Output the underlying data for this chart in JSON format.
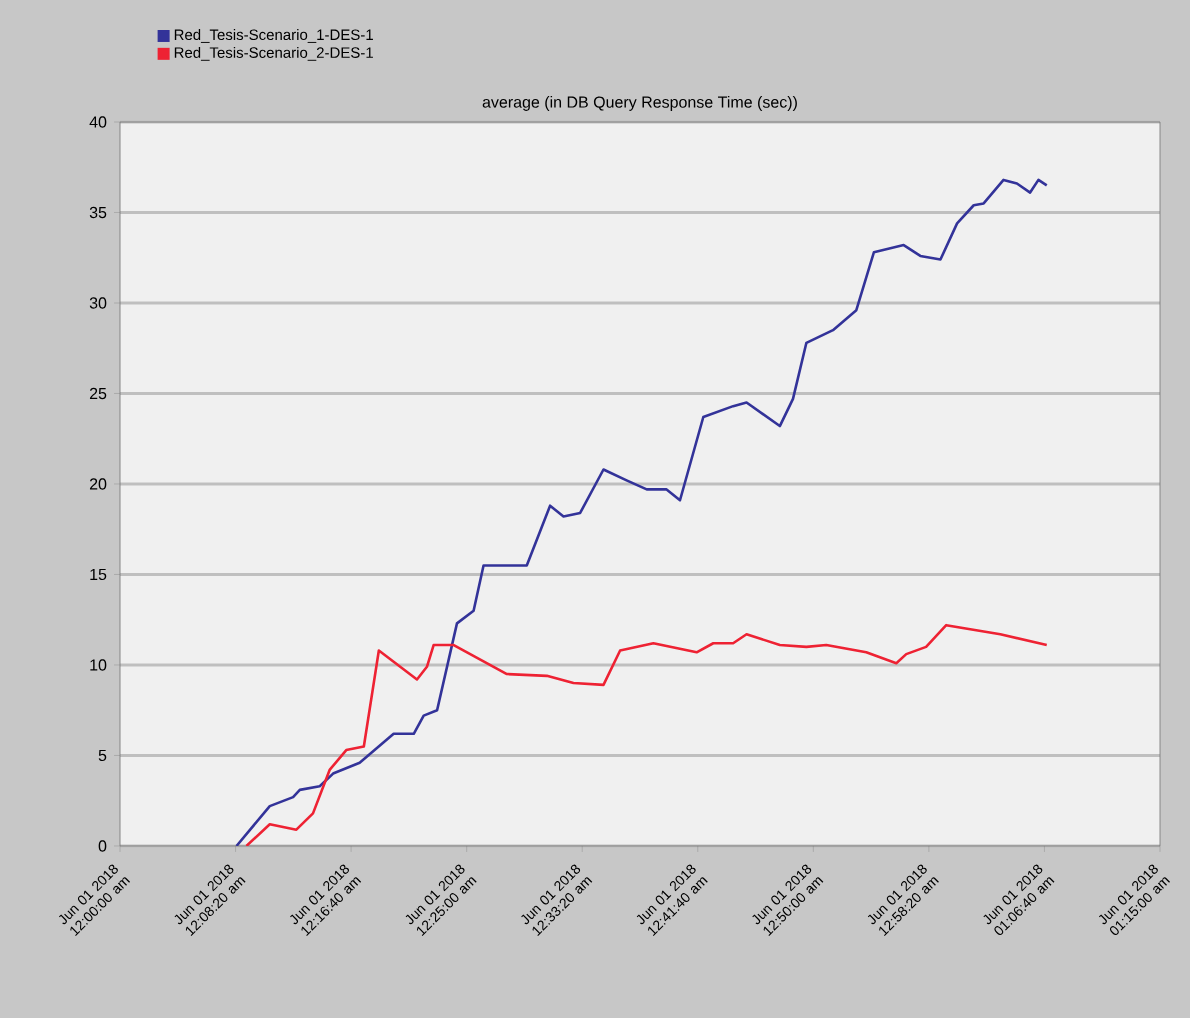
{
  "chart_data": {
    "type": "line",
    "title": "average (in DB Query Response Time (sec))",
    "x": [
      "2018-06-01T00:08:24",
      "2018-06-01T00:10:48",
      "2018-06-01T00:12:29",
      "2018-06-01T00:12:58",
      "2018-06-01T00:14:24",
      "2018-06-01T00:15:22",
      "2018-06-01T00:17:17",
      "2018-06-01T00:19:44",
      "2018-06-01T00:21:11",
      "2018-06-01T00:21:54",
      "2018-06-01T00:22:52",
      "2018-06-01T00:24:18",
      "2018-06-01T00:25:30",
      "2018-06-01T00:26:13",
      "2018-06-01T00:29:20",
      "2018-06-01T00:31:01",
      "2018-06-01T00:31:59",
      "2018-06-01T00:33:11",
      "2018-06-01T00:34:52",
      "2018-06-01T00:36:32",
      "2018-06-01T00:37:59",
      "2018-06-01T00:39:25",
      "2018-06-01T00:40:23",
      "2018-06-01T00:42:04",
      "2018-06-01T00:44:13",
      "2018-06-01T00:45:11",
      "2018-06-01T00:47:35",
      "2018-06-01T00:48:32",
      "2018-06-01T00:49:30",
      "2018-06-01T00:51:25",
      "2018-06-01T00:53:06",
      "2018-06-01T00:54:22",
      "2018-06-01T00:56:31",
      "2018-06-01T00:57:43",
      "2018-06-01T00:59:10",
      "2018-06-01T01:00:22",
      "2018-06-01T01:01:34",
      "2018-06-01T01:02:17",
      "2018-06-01T01:03:43",
      "2018-06-01T01:04:41",
      "2018-06-01T01:05:38",
      "2018-06-01T01:06:14",
      "2018-06-01T01:06:50"
    ],
    "series": [
      {
        "name": "Red_Tesis-Scenario_1-DES-1",
        "color": "#333399",
        "values": [
          0,
          2.2,
          2.7,
          3.1,
          3.3,
          4.0,
          4.6,
          6.2,
          6.2,
          7.2,
          7.5,
          12.3,
          13.0,
          15.5,
          15.5,
          18.8,
          18.2,
          18.4,
          20.8,
          20.2,
          19.7,
          19.7,
          19.1,
          23.7,
          24.3,
          24.5,
          23.2,
          24.7,
          27.8,
          28.5,
          29.6,
          32.8,
          33.2,
          32.6,
          32.4,
          34.4,
          35.4,
          35.5,
          36.8,
          36.6,
          36.1,
          36.8,
          36.5
        ]
      },
      {
        "name": "Red_Tesis-Scenario_2-DES-1",
        "color": "#ee2233",
        "x": [
          "2018-06-01T00:09:07",
          "2018-06-01T00:10:48",
          "2018-06-01T00:12:43",
          "2018-06-01T00:13:55",
          "2018-06-01T00:15:07",
          "2018-06-01T00:16:19",
          "2018-06-01T00:17:35",
          "2018-06-01T00:18:40",
          "2018-06-01T00:21:25",
          "2018-06-01T00:22:08",
          "2018-06-01T00:22:37",
          "2018-06-01T00:24:04",
          "2018-06-01T00:25:59",
          "2018-06-01T00:27:54",
          "2018-06-01T00:30:47",
          "2018-06-01T00:32:42",
          "2018-06-01T00:34:52",
          "2018-06-01T00:36:04",
          "2018-06-01T00:38:28",
          "2018-06-01T00:41:35",
          "2018-06-01T00:42:47",
          "2018-06-01T00:44:13",
          "2018-06-01T00:45:11",
          "2018-06-01T00:47:35",
          "2018-06-01T00:49:30",
          "2018-06-01T00:50:56",
          "2018-06-01T00:53:49",
          "2018-06-01T00:55:59",
          "2018-06-01T00:56:42",
          "2018-06-01T00:58:08",
          "2018-06-01T00:59:35",
          "2018-06-01T01:03:29",
          "2018-06-01T01:06:50"
        ],
        "values": [
          0,
          1.2,
          0.9,
          1.8,
          4.2,
          5.3,
          5.5,
          10.8,
          9.2,
          9.9,
          11.1,
          11.1,
          10.3,
          9.5,
          9.4,
          9.0,
          8.9,
          10.8,
          11.2,
          10.7,
          11.2,
          11.2,
          11.7,
          11.1,
          11.0,
          11.1,
          10.7,
          10.1,
          10.6,
          11.0,
          12.2,
          11.7,
          11.1
        ]
      }
    ],
    "xlim": [
      "2018-06-01T00:00:00",
      "2018-06-01T01:15:00"
    ],
    "xticks": [
      {
        "value": "2018-06-01T00:00:00",
        "label": "Jun 01 2018 12:00:00 am"
      },
      {
        "value": "2018-06-01T00:08:20",
        "label": "Jun 01 2018 12:08:20 am"
      },
      {
        "value": "2018-06-01T00:16:40",
        "label": "Jun 01 2018 12:16:40 am"
      },
      {
        "value": "2018-06-01T00:25:00",
        "label": "Jun 01 2018 12:25:00 am"
      },
      {
        "value": "2018-06-01T00:33:20",
        "label": "Jun 01 2018 12:33:20 am"
      },
      {
        "value": "2018-06-01T00:41:40",
        "label": "Jun 01 2018 12:41:40 am"
      },
      {
        "value": "2018-06-01T00:50:00",
        "label": "Jun 01 2018 12:50:00 am"
      },
      {
        "value": "2018-06-01T00:58:20",
        "label": "Jun 01 2018 12:58:20 am"
      },
      {
        "value": "2018-06-01T01:06:40",
        "label": "Jun 01 2018 01:06:40 am"
      },
      {
        "value": "2018-06-01T01:15:00",
        "label": "Jun 01 2018 01:15:00 am"
      }
    ],
    "ylim": [
      0,
      40
    ],
    "yticks": [
      0,
      5,
      10,
      15,
      20,
      25,
      30,
      35,
      40
    ],
    "grid": "y",
    "legend": "top left",
    "marker": "none"
  }
}
